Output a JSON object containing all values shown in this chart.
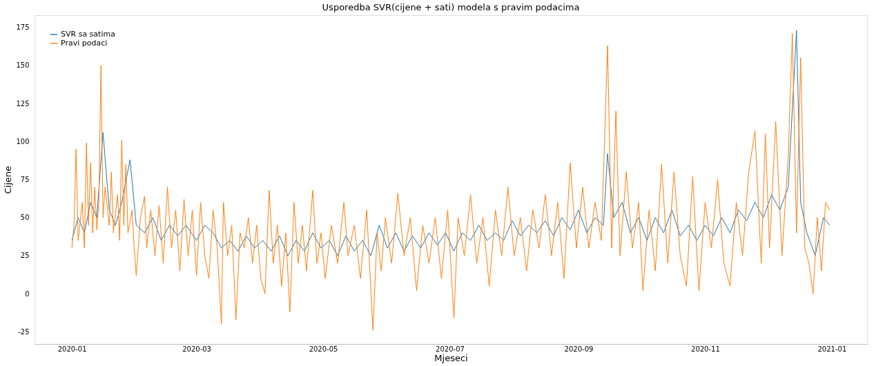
{
  "chart_data": {
    "type": "line",
    "title": "Usporedba SVR(cijene + sati) modela s pravim podacima",
    "xlabel": "Mjeseci",
    "ylabel": "Cijene",
    "legend": "top left",
    "grid": false,
    "xlim": [
      "2019-12-14",
      "2021-01-18"
    ],
    "ylim": [
      -33,
      183
    ],
    "yticks": [
      -25,
      0,
      25,
      50,
      75,
      100,
      125,
      150,
      175
    ],
    "xticks": [
      {
        "value": "2020-01-01",
        "label": "2020-01"
      },
      {
        "value": "2020-03-01",
        "label": "2020-03"
      },
      {
        "value": "2020-05-01",
        "label": "2020-05"
      },
      {
        "value": "2020-07-01",
        "label": "2020-07"
      },
      {
        "value": "2020-09-01",
        "label": "2020-09"
      },
      {
        "value": "2020-11-01",
        "label": "2020-11"
      },
      {
        "value": "2021-01-01",
        "label": "2021-01"
      }
    ],
    "series": [
      {
        "name": "SVR sa satima",
        "color": "#1f77b4",
        "x": [
          "2020-01-01",
          "2020-01-04",
          "2020-01-07",
          "2020-01-10",
          "2020-01-13",
          "2020-01-16",
          "2020-01-19",
          "2020-01-22",
          "2020-01-25",
          "2020-01-29",
          "2020-02-01",
          "2020-02-05",
          "2020-02-09",
          "2020-02-13",
          "2020-02-17",
          "2020-02-21",
          "2020-02-25",
          "2020-03-01",
          "2020-03-05",
          "2020-03-09",
          "2020-03-13",
          "2020-03-17",
          "2020-03-21",
          "2020-03-25",
          "2020-03-29",
          "2020-04-02",
          "2020-04-06",
          "2020-04-10",
          "2020-04-14",
          "2020-04-18",
          "2020-04-22",
          "2020-04-26",
          "2020-04-30",
          "2020-05-04",
          "2020-05-08",
          "2020-05-12",
          "2020-05-16",
          "2020-05-20",
          "2020-05-24",
          "2020-05-28",
          "2020-06-01",
          "2020-06-05",
          "2020-06-09",
          "2020-06-13",
          "2020-06-17",
          "2020-06-21",
          "2020-06-25",
          "2020-06-29",
          "2020-07-03",
          "2020-07-07",
          "2020-07-11",
          "2020-07-15",
          "2020-07-19",
          "2020-07-23",
          "2020-07-27",
          "2020-07-31",
          "2020-08-04",
          "2020-08-08",
          "2020-08-12",
          "2020-08-16",
          "2020-08-20",
          "2020-08-24",
          "2020-08-28",
          "2020-09-01",
          "2020-09-05",
          "2020-09-09",
          "2020-09-13",
          "2020-09-15",
          "2020-09-18",
          "2020-09-22",
          "2020-09-26",
          "2020-09-30",
          "2020-10-04",
          "2020-10-08",
          "2020-10-12",
          "2020-10-16",
          "2020-10-20",
          "2020-10-24",
          "2020-10-28",
          "2020-11-01",
          "2020-11-05",
          "2020-11-09",
          "2020-11-13",
          "2020-11-17",
          "2020-11-21",
          "2020-11-25",
          "2020-11-29",
          "2020-12-03",
          "2020-12-07",
          "2020-12-11",
          "2020-12-15",
          "2020-12-17",
          "2020-12-20",
          "2020-12-24",
          "2020-12-28",
          "2020-12-31"
        ],
        "values": [
          35,
          50,
          40,
          60,
          50,
          106,
          55,
          45,
          60,
          88,
          45,
          40,
          50,
          35,
          45,
          38,
          45,
          35,
          45,
          40,
          30,
          35,
          28,
          38,
          30,
          35,
          28,
          38,
          25,
          35,
          28,
          40,
          30,
          35,
          25,
          38,
          28,
          35,
          25,
          45,
          30,
          40,
          28,
          38,
          30,
          40,
          32,
          40,
          28,
          40,
          35,
          45,
          35,
          40,
          35,
          48,
          38,
          45,
          40,
          48,
          38,
          50,
          42,
          55,
          40,
          50,
          45,
          92,
          50,
          60,
          40,
          50,
          35,
          50,
          40,
          55,
          38,
          45,
          35,
          45,
          38,
          50,
          40,
          55,
          48,
          60,
          50,
          65,
          55,
          70,
          173,
          60,
          40,
          25,
          50,
          45
        ]
      },
      {
        "name": "Pravi podaci",
        "color": "#ff7f0e",
        "x": [
          "2020-01-01",
          "2020-01-02",
          "2020-01-03",
          "2020-01-04",
          "2020-01-06",
          "2020-01-07",
          "2020-01-08",
          "2020-01-09",
          "2020-01-10",
          "2020-01-11",
          "2020-01-12",
          "2020-01-13",
          "2020-01-14",
          "2020-01-15",
          "2020-01-16",
          "2020-01-17",
          "2020-01-19",
          "2020-01-20",
          "2020-01-21",
          "2020-01-23",
          "2020-01-24",
          "2020-01-25",
          "2020-01-26",
          "2020-01-27",
          "2020-01-28",
          "2020-01-30",
          "2020-01-31",
          "2020-02-01",
          "2020-02-03",
          "2020-02-05",
          "2020-02-06",
          "2020-02-08",
          "2020-02-10",
          "2020-02-12",
          "2020-02-14",
          "2020-02-16",
          "2020-02-18",
          "2020-02-20",
          "2020-02-22",
          "2020-02-24",
          "2020-02-26",
          "2020-02-28",
          "2020-03-01",
          "2020-03-03",
          "2020-03-05",
          "2020-03-07",
          "2020-03-09",
          "2020-03-11",
          "2020-03-13",
          "2020-03-14",
          "2020-03-16",
          "2020-03-18",
          "2020-03-20",
          "2020-03-22",
          "2020-03-24",
          "2020-03-26",
          "2020-03-28",
          "2020-03-30",
          "2020-04-01",
          "2020-04-03",
          "2020-04-05",
          "2020-04-07",
          "2020-04-09",
          "2020-04-11",
          "2020-04-13",
          "2020-04-15",
          "2020-04-17",
          "2020-04-19",
          "2020-04-21",
          "2020-04-23",
          "2020-04-26",
          "2020-04-28",
          "2020-04-30",
          "2020-05-02",
          "2020-05-05",
          "2020-05-08",
          "2020-05-11",
          "2020-05-13",
          "2020-05-16",
          "2020-05-19",
          "2020-05-22",
          "2020-05-25",
          "2020-05-27",
          "2020-05-29",
          "2020-05-31",
          "2020-06-03",
          "2020-06-06",
          "2020-06-09",
          "2020-06-12",
          "2020-06-15",
          "2020-06-18",
          "2020-06-21",
          "2020-06-24",
          "2020-06-27",
          "2020-06-30",
          "2020-07-03",
          "2020-07-05",
          "2020-07-08",
          "2020-07-11",
          "2020-07-14",
          "2020-07-17",
          "2020-07-20",
          "2020-07-23",
          "2020-07-26",
          "2020-07-29",
          "2020-08-01",
          "2020-08-04",
          "2020-08-07",
          "2020-08-10",
          "2020-08-13",
          "2020-08-16",
          "2020-08-19",
          "2020-08-22",
          "2020-08-25",
          "2020-08-28",
          "2020-08-31",
          "2020-09-03",
          "2020-09-06",
          "2020-09-09",
          "2020-09-12",
          "2020-09-15",
          "2020-09-17",
          "2020-09-19",
          "2020-09-21",
          "2020-09-24",
          "2020-09-27",
          "2020-09-30",
          "2020-10-02",
          "2020-10-05",
          "2020-10-08",
          "2020-10-11",
          "2020-10-14",
          "2020-10-17",
          "2020-10-20",
          "2020-10-23",
          "2020-10-26",
          "2020-10-29",
          "2020-11-01",
          "2020-11-04",
          "2020-11-07",
          "2020-11-10",
          "2020-11-13",
          "2020-11-16",
          "2020-11-19",
          "2020-11-22",
          "2020-11-25",
          "2020-11-28",
          "2020-11-30",
          "2020-12-02",
          "2020-12-05",
          "2020-12-08",
          "2020-12-11",
          "2020-12-13",
          "2020-12-15",
          "2020-12-17",
          "2020-12-19",
          "2020-12-21",
          "2020-12-23",
          "2020-12-25",
          "2020-12-27",
          "2020-12-29",
          "2020-12-31"
        ],
        "values": [
          30,
          45,
          95,
          35,
          60,
          30,
          99,
          45,
          86,
          40,
          70,
          42,
          60,
          150,
          50,
          70,
          45,
          80,
          40,
          65,
          35,
          101,
          45,
          85,
          40,
          55,
          30,
          12,
          50,
          64,
          30,
          55,
          25,
          58,
          20,
          70,
          30,
          55,
          15,
          62,
          25,
          55,
          12,
          60,
          25,
          10,
          55,
          30,
          -20,
          60,
          25,
          45,
          -17,
          40,
          30,
          50,
          20,
          45,
          10,
          0,
          68,
          20,
          45,
          5,
          40,
          -12,
          60,
          20,
          45,
          15,
          68,
          20,
          40,
          10,
          45,
          20,
          60,
          25,
          45,
          10,
          55,
          -24,
          40,
          15,
          50,
          20,
          66,
          25,
          50,
          2,
          45,
          20,
          50,
          10,
          55,
          -16,
          50,
          25,
          65,
          20,
          50,
          5,
          55,
          25,
          70,
          25,
          50,
          15,
          55,
          30,
          65,
          25,
          60,
          10,
          86,
          30,
          70,
          30,
          60,
          35,
          163,
          30,
          120,
          25,
          80,
          30,
          60,
          2,
          55,
          15,
          85,
          20,
          80,
          25,
          5,
          77,
          2,
          60,
          30,
          75,
          20,
          5,
          60,
          25,
          80,
          107,
          20,
          105,
          30,
          113,
          25,
          90,
          171,
          40,
          155,
          30,
          20,
          0,
          50,
          15,
          60,
          55
        ]
      }
    ]
  }
}
